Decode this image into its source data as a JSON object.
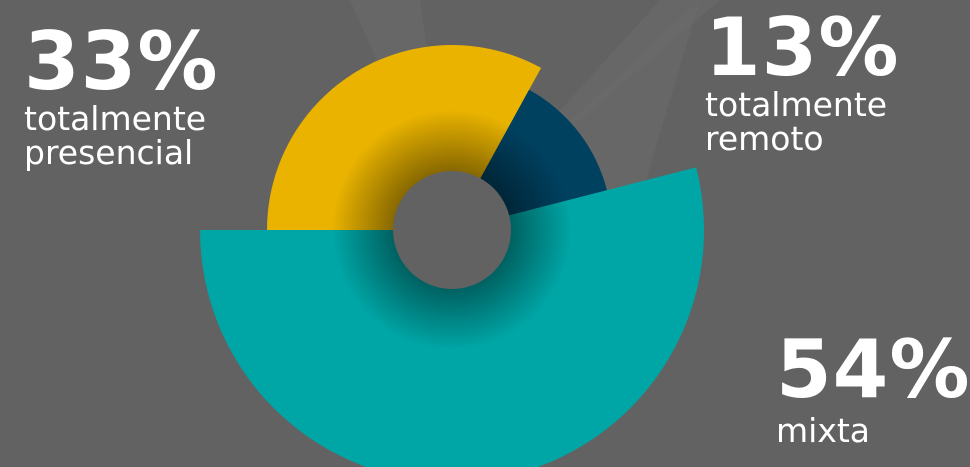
{
  "chart_data": {
    "type": "pie",
    "variant": "exploded-donut",
    "slices": [
      {
        "label_pct": "33%",
        "label_text": [
          "totalmente",
          "presencial"
        ],
        "value": 33,
        "color": "#e9b300"
      },
      {
        "label_pct": "13%",
        "label_text": [
          "totalmente",
          "remoto"
        ],
        "value": 13,
        "color": "#004160"
      },
      {
        "label_pct": "54%",
        "label_text": [
          "mixta"
        ],
        "value": 54,
        "color": "#00a6a6"
      }
    ]
  },
  "colors": {
    "background": "#626262",
    "hole": "#626262",
    "text": "#ffffff"
  }
}
